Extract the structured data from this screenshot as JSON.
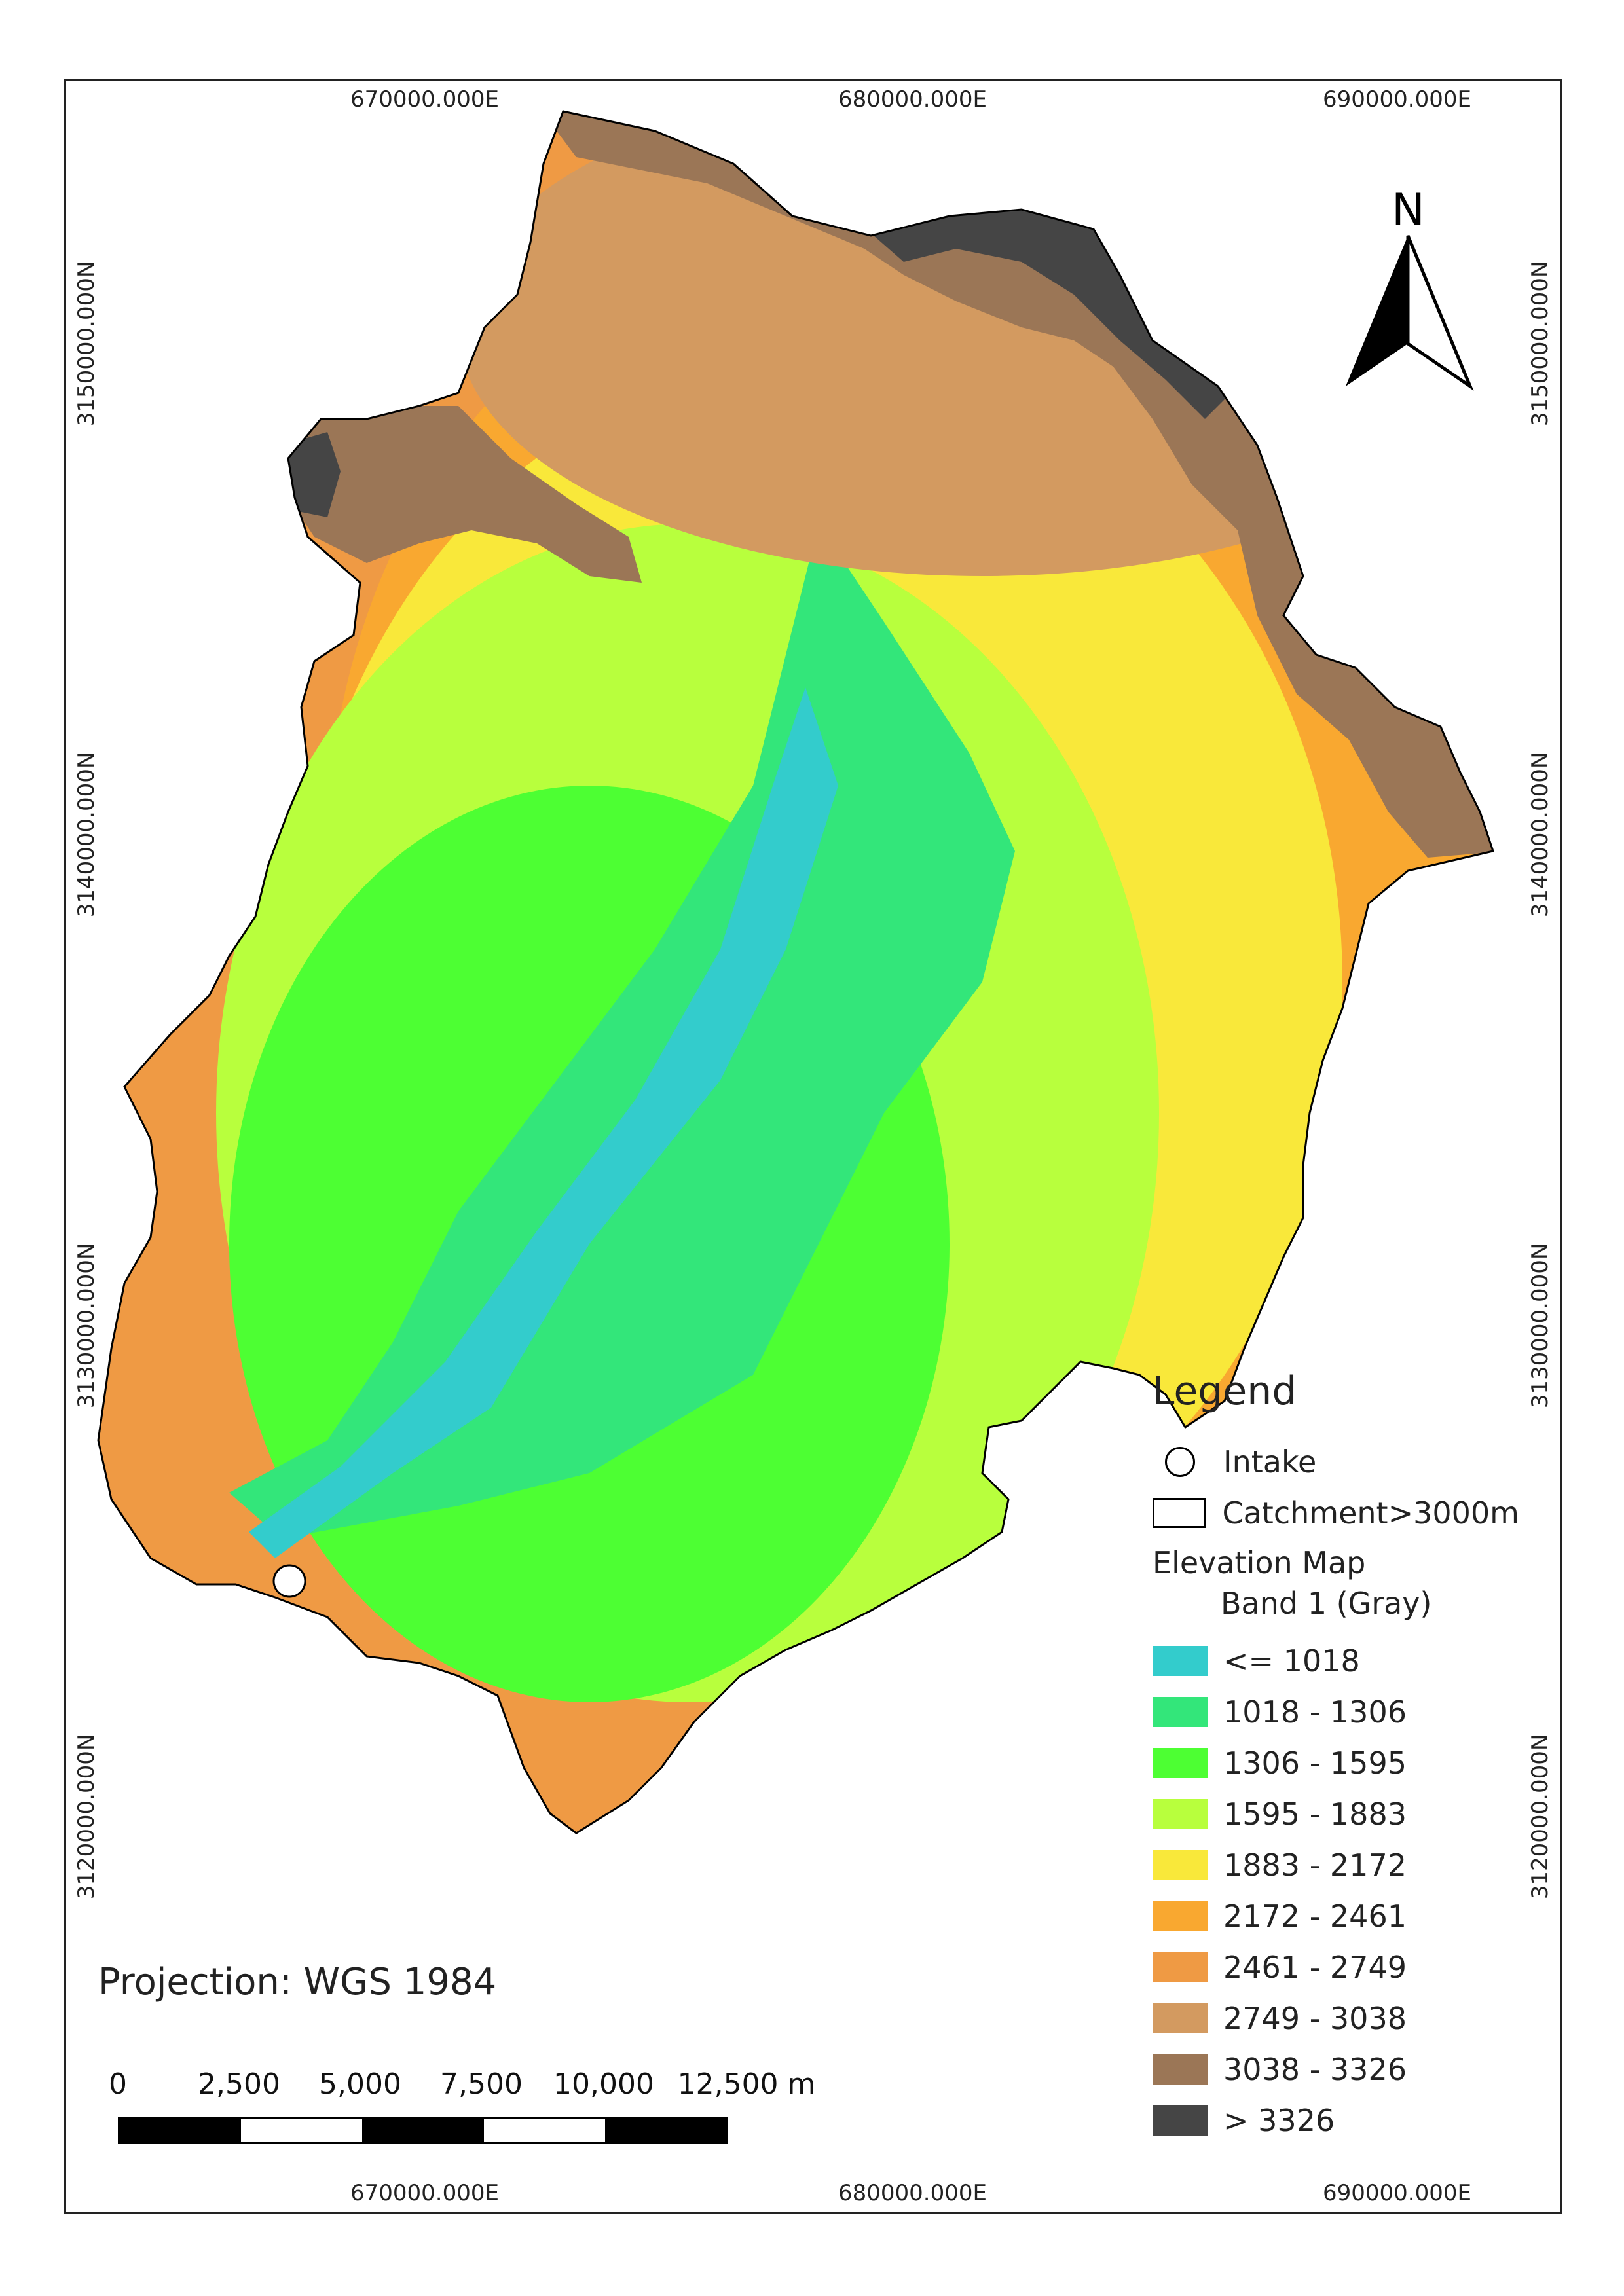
{
  "map": {
    "x_labels_top": [
      "670000.000E",
      "680000.000E",
      "690000.000E"
    ],
    "x_labels_bottom": [
      "670000.000E",
      "680000.000E",
      "690000.000E"
    ],
    "y_labels_left": [
      "3150000.000N",
      "3140000.000N",
      "3130000.000N",
      "3120000.000N"
    ],
    "y_labels_right": [
      "3150000.000N",
      "3140000.000N",
      "3130000.000N",
      "3120000.000N"
    ],
    "north_label": "N",
    "projection": "Projection: WGS 1984",
    "scale_labels": [
      "0",
      "2,500",
      "5,000",
      "7,500",
      "10,000",
      "12,500 m"
    ]
  },
  "legend": {
    "title": "Legend",
    "intake_label": "Intake",
    "catchment_label": "Catchment>3000m",
    "elevation_title": "Elevation Map",
    "band_label": "Band 1 (Gray)",
    "classes": [
      {
        "label": "<= 1018",
        "color": "#33cccc"
      },
      {
        "label": "1018 - 1306",
        "color": "#33e67a"
      },
      {
        "label": "1306 - 1595",
        "color": "#4dff33"
      },
      {
        "label": "1595 - 1883",
        "color": "#b8ff3d"
      },
      {
        "label": "1883 - 2172",
        "color": "#f9e83a"
      },
      {
        "label": "2172 - 2461",
        "color": "#f9a830"
      },
      {
        "label": "2461 - 2749",
        "color": "#ef9a44"
      },
      {
        "label": "2749 - 3038",
        "color": "#d39a60"
      },
      {
        "label": "3038 - 3326",
        "color": "#9b7656"
      },
      {
        "label": "> 3326",
        "color": "#454545"
      }
    ]
  }
}
